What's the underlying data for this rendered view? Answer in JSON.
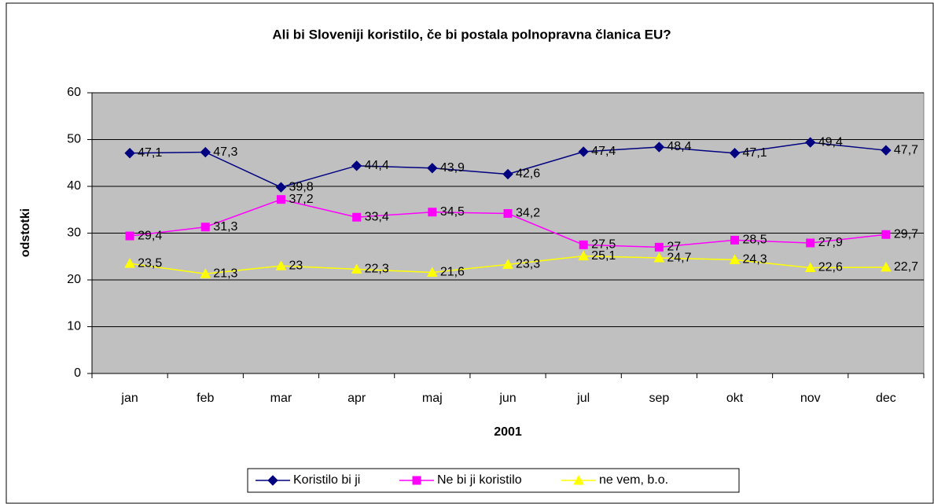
{
  "chart_data": {
    "type": "line",
    "title": "Ali bi Sloveniji koristilo, če bi postala polnopravna članica EU?",
    "x_label": "2001",
    "y_label": "odstotki",
    "categories": [
      "jan",
      "feb",
      "mar",
      "apr",
      "maj",
      "jun",
      "jul",
      "sep",
      "okt",
      "nov",
      "dec"
    ],
    "series": [
      {
        "name": "Koristilo bi ji",
        "color": "#000080",
        "marker": "diamond",
        "values": [
          47.1,
          47.3,
          39.8,
          44.4,
          43.9,
          42.6,
          47.4,
          48.4,
          47.1,
          49.4,
          47.7
        ],
        "value_labels": [
          "47,1",
          "47,3",
          "39,8",
          "44,4",
          "43,9",
          "42,6",
          "47,4",
          "48,4",
          "47,1",
          "49,4",
          "47,7"
        ]
      },
      {
        "name": "Ne bi ji koristilo",
        "color": "#FF00FF",
        "marker": "square",
        "values": [
          29.4,
          31.3,
          37.2,
          33.4,
          34.5,
          34.2,
          27.5,
          27,
          28.5,
          27.9,
          29.7
        ],
        "value_labels": [
          "29,4",
          "31,3",
          "37,2",
          "33,4",
          "34,5",
          "34,2",
          "27,5",
          "27",
          "28,5",
          "27,9",
          "29,7"
        ]
      },
      {
        "name": "ne vem, b.o.",
        "color": "#FFFF00",
        "marker": "triangle",
        "values": [
          23.5,
          21.3,
          23,
          22.3,
          21.6,
          23.3,
          25.1,
          24.7,
          24.3,
          22.6,
          22.7
        ],
        "value_labels": [
          "23,5",
          "21,3",
          "23",
          "22,3",
          "21,6",
          "23,3",
          "25,1",
          "24,7",
          "24,3",
          "22,6",
          "22,7"
        ]
      }
    ],
    "ylim": [
      0,
      60
    ],
    "yticks": [
      0,
      10,
      20,
      30,
      40,
      50,
      60
    ],
    "grid": true,
    "plot_background": "#C0C0C0",
    "legend": "bottom"
  }
}
